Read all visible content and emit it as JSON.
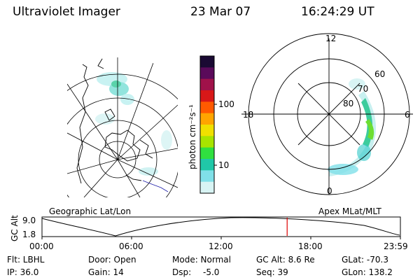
{
  "header": {
    "title": "Ultraviolet Imager",
    "date": "23 Mar 07",
    "time": "16:24:29 UT"
  },
  "geo_map": {
    "label": "Geographic Lat/Lon"
  },
  "colorbar": {
    "unit_label": "photon cm⁻²s⁻¹",
    "ticks": [
      "100",
      "10"
    ],
    "colors": [
      "#1a0a33",
      "#5a0a5a",
      "#a0124a",
      "#d81818",
      "#ff5a00",
      "#ffa500",
      "#f0e000",
      "#a8e400",
      "#30e040",
      "#20c8a8",
      "#80e0e8",
      "#d8f4f4"
    ]
  },
  "polar_plot": {
    "label": "Apex MLat/MLT",
    "mlt_labels": {
      "top": "12",
      "left": "18",
      "right": "6",
      "bottom": "0"
    },
    "mlat_labels": [
      "60",
      "70",
      "80"
    ]
  },
  "timeline": {
    "axis_title": "GC Alt",
    "y_ticks": [
      "9.0",
      "1.8"
    ],
    "x_ticks": [
      "00:00",
      "06:00",
      "12:00",
      "18:00",
      "23:59"
    ],
    "current_fraction": 0.684
  },
  "info": {
    "flt": "Flt: LBHL",
    "door": "Door: Open",
    "mode": "Mode: Normal",
    "gc_alt": "GC Alt: 8.6 Re",
    "glat": "GLat: -70.3",
    "ip": "IP: 36.0",
    "gain": "Gain: 14",
    "dsp_label": "Dsp:",
    "dsp_value": "-5.0",
    "seq": "Seq: 39",
    "glon": "GLon: 138.2"
  },
  "colors": {
    "marker": "#dd0000",
    "aurora_low": "#9ee0e0",
    "aurora_mid": "#3ccc9c",
    "aurora_high": "#6cde32"
  }
}
